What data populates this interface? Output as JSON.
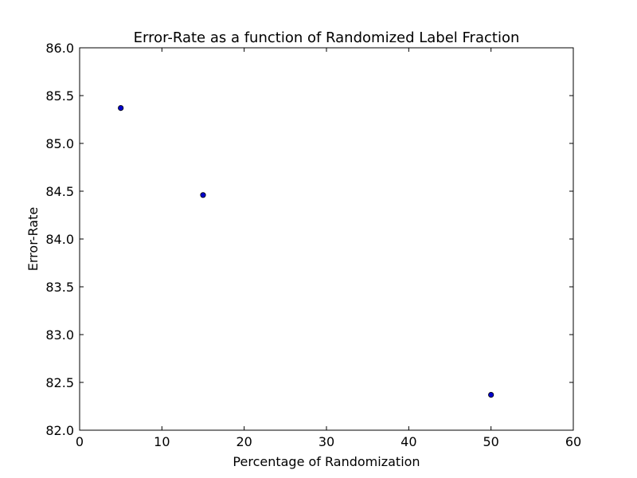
{
  "chart_data": {
    "type": "scatter",
    "title": "Error-Rate as a function of Randomized Label Fraction",
    "xlabel": "Percentage of Randomization",
    "ylabel": "Error-Rate",
    "xlim": [
      0,
      60
    ],
    "ylim": [
      82.0,
      86.0
    ],
    "xticks": [
      "0",
      "10",
      "20",
      "30",
      "40",
      "50",
      "60"
    ],
    "yticks": [
      "82.0",
      "82.5",
      "83.0",
      "83.5",
      "84.0",
      "84.5",
      "85.0",
      "85.5",
      "86.0"
    ],
    "grid": false,
    "legend": "none",
    "series": [
      {
        "color": "#0000cc",
        "points": [
          {
            "x": 5,
            "y": 85.37
          },
          {
            "x": 15,
            "y": 84.46
          },
          {
            "x": 50,
            "y": 82.37
          }
        ]
      }
    ]
  }
}
